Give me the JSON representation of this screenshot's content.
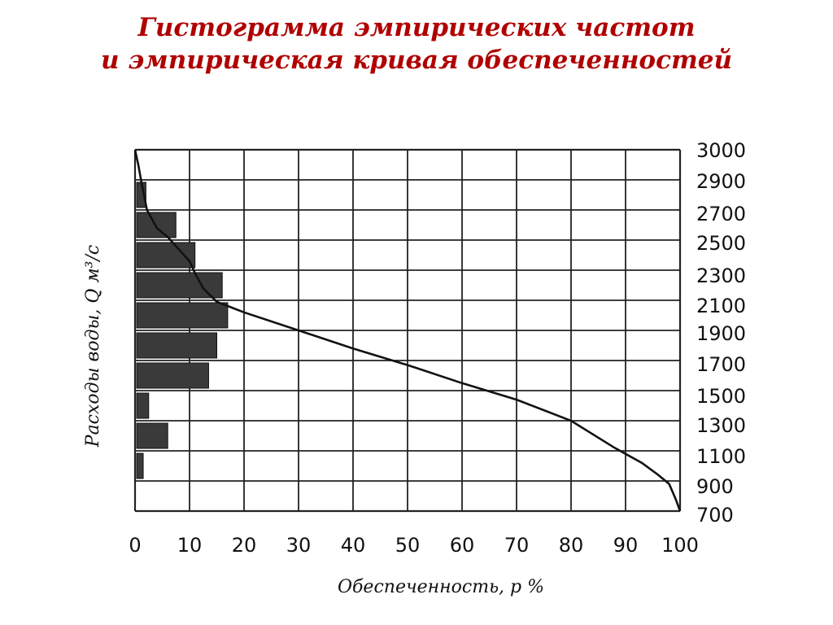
{
  "title": {
    "line1": "Гистограмма эмпирических частот",
    "line2": "и эмпирическая кривая обеспеченностей"
  },
  "chart_data": {
    "type": "bar",
    "xlabel": "Обеспеченность, р %",
    "ylabel": "Расходы воды, Q м³/с",
    "xlim": [
      0,
      100
    ],
    "x_ticks": [
      "0",
      "10",
      "20",
      "30",
      "40",
      "50",
      "60",
      "70",
      "80",
      "90",
      "100"
    ],
    "y_ticks": [
      "3000",
      "2900",
      "2700",
      "2500",
      "2300",
      "2100",
      "1900",
      "1700",
      "1500",
      "1300",
      "1100",
      "900",
      "700"
    ],
    "grid": true,
    "histogram": [
      {
        "band": 1,
        "freq": 2.0
      },
      {
        "band": 2,
        "freq": 7.5
      },
      {
        "band": 3,
        "freq": 11.0
      },
      {
        "band": 4,
        "freq": 16.0
      },
      {
        "band": 5,
        "freq": 17.0
      },
      {
        "band": 6,
        "freq": 15.0
      },
      {
        "band": 7,
        "freq": 13.5
      },
      {
        "band": 8,
        "freq": 2.5
      },
      {
        "band": 9,
        "freq": 6.0
      },
      {
        "band": 10,
        "freq": 1.5
      }
    ],
    "curve": [
      {
        "x": 0,
        "band": 0.0
      },
      {
        "x": 0.6,
        "band": 0.5
      },
      {
        "x": 1.2,
        "band": 1.1
      },
      {
        "x": 2.2,
        "band": 2.0
      },
      {
        "x": 4,
        "band": 2.6
      },
      {
        "x": 6,
        "band": 2.9
      },
      {
        "x": 8.5,
        "band": 3.4
      },
      {
        "x": 10,
        "band": 3.7
      },
      {
        "x": 11,
        "band": 4.1
      },
      {
        "x": 12.5,
        "band": 4.6
      },
      {
        "x": 15,
        "band": 5.05
      },
      {
        "x": 20,
        "band": 5.4
      },
      {
        "x": 30,
        "band": 6.0
      },
      {
        "x": 40,
        "band": 6.6
      },
      {
        "x": 50,
        "band": 7.15
      },
      {
        "x": 60,
        "band": 7.75
      },
      {
        "x": 70,
        "band": 8.3
      },
      {
        "x": 80,
        "band": 9.0
      },
      {
        "x": 88,
        "band": 9.9
      },
      {
        "x": 93,
        "band": 10.4
      },
      {
        "x": 96,
        "band": 10.8
      },
      {
        "x": 98,
        "band": 11.1
      },
      {
        "x": 99.2,
        "band": 11.6
      },
      {
        "x": 100,
        "band": 12.0
      }
    ]
  }
}
